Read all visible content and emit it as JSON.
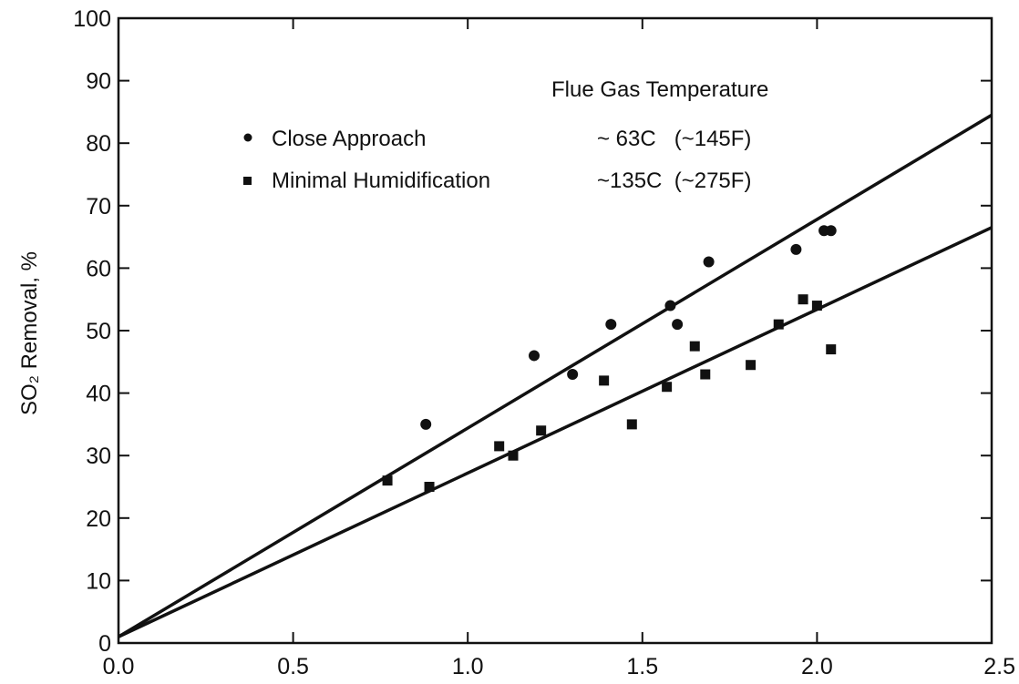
{
  "chart_data": {
    "type": "scatter",
    "title": "",
    "xlabel": "",
    "ylabel": "SO₂ Removal, %",
    "xlim": [
      0.0,
      2.5
    ],
    "ylim": [
      0,
      100
    ],
    "x_ticks": [
      "0.0",
      "0.5",
      "1.0",
      "1.5",
      "2.0",
      "2.5"
    ],
    "y_ticks": [
      "0",
      "10",
      "20",
      "30",
      "40",
      "50",
      "60",
      "70",
      "80",
      "90",
      "100"
    ],
    "grid": false,
    "legend": {
      "placement": "top-left",
      "header": "Flue Gas Temperature",
      "entries": [
        {
          "label": "Close Approach",
          "temperature": "~ 63C   (~145F)",
          "marker": "circle"
        },
        {
          "label": "Minimal Humidification",
          "temperature": "~135C  (~275F)",
          "marker": "square"
        }
      ]
    },
    "series": [
      {
        "marker": "circle",
        "points": [
          [
            0.88,
            35
          ],
          [
            1.19,
            46
          ],
          [
            1.3,
            43
          ],
          [
            1.41,
            51
          ],
          [
            1.58,
            54
          ],
          [
            1.6,
            51
          ],
          [
            1.69,
            61
          ],
          [
            1.94,
            63
          ],
          [
            2.02,
            66
          ],
          [
            2.04,
            66
          ]
        ]
      },
      {
        "marker": "square",
        "points": [
          [
            0.77,
            26
          ],
          [
            0.89,
            25
          ],
          [
            1.09,
            31.5
          ],
          [
            1.13,
            30
          ],
          [
            1.21,
            34
          ],
          [
            1.39,
            42
          ],
          [
            1.47,
            35
          ],
          [
            1.57,
            41
          ],
          [
            1.65,
            47.5
          ],
          [
            1.68,
            43
          ],
          [
            1.81,
            44.5
          ],
          [
            1.89,
            51
          ],
          [
            1.96,
            55
          ],
          [
            2.0,
            54
          ],
          [
            2.04,
            47
          ]
        ]
      }
    ],
    "fit_lines": [
      {
        "marker": "circle",
        "points": [
          [
            0.0,
            1
          ],
          [
            2.5,
            84.5
          ]
        ]
      },
      {
        "marker": "square",
        "points": [
          [
            0.0,
            1
          ],
          [
            2.5,
            66.5
          ]
        ]
      }
    ]
  }
}
